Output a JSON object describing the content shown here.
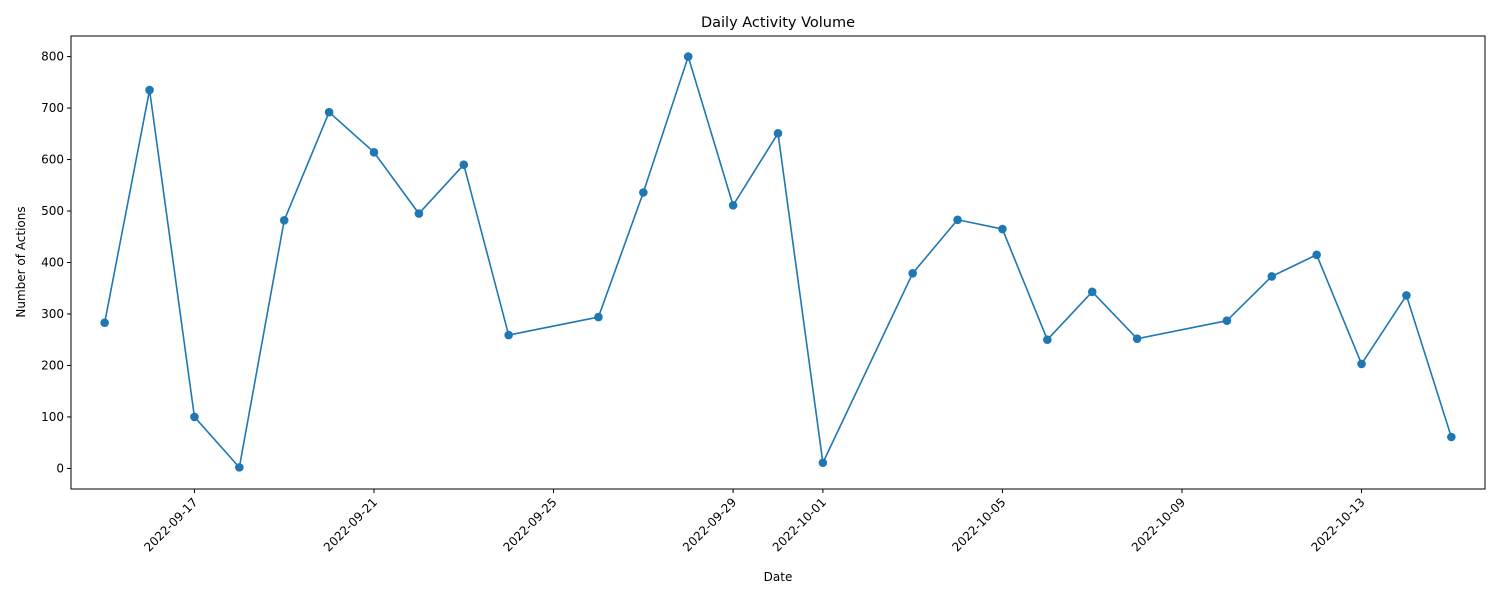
{
  "chart_data": {
    "type": "line",
    "title": "Daily Activity Volume",
    "xlabel": "Date",
    "ylabel": "Number of Actions",
    "xlim": [
      "2022-09-14T06:00",
      "2022-10-15T18:00"
    ],
    "ylim": [
      -40,
      840
    ],
    "x_ticks": [
      "2022-09-17",
      "2022-09-21",
      "2022-09-25",
      "2022-09-29",
      "2022-10-01",
      "2022-10-05",
      "2022-10-09",
      "2022-10-13"
    ],
    "y_ticks": [
      0,
      100,
      200,
      300,
      400,
      500,
      600,
      700,
      800
    ],
    "grid": false,
    "legend": "none",
    "series": [
      {
        "color": "#1f77b4",
        "marker": "circle",
        "x": [
          "2022-09-15",
          "2022-09-16",
          "2022-09-17",
          "2022-09-18",
          "2022-09-19",
          "2022-09-20",
          "2022-09-21",
          "2022-09-22",
          "2022-09-23",
          "2022-09-24",
          "2022-09-26",
          "2022-09-27",
          "2022-09-28",
          "2022-09-29",
          "2022-09-30",
          "2022-10-01",
          "2022-10-03",
          "2022-10-04",
          "2022-10-05",
          "2022-10-06",
          "2022-10-07",
          "2022-10-08",
          "2022-10-10",
          "2022-10-11",
          "2022-10-12",
          "2022-10-13",
          "2022-10-14",
          "2022-10-15"
        ],
        "y": [
          283,
          735,
          100,
          2,
          482,
          692,
          614,
          495,
          590,
          259,
          294,
          536,
          800,
          511,
          651,
          11,
          379,
          483,
          465,
          250,
          343,
          252,
          287,
          373,
          415,
          203,
          336,
          61
        ]
      }
    ]
  }
}
